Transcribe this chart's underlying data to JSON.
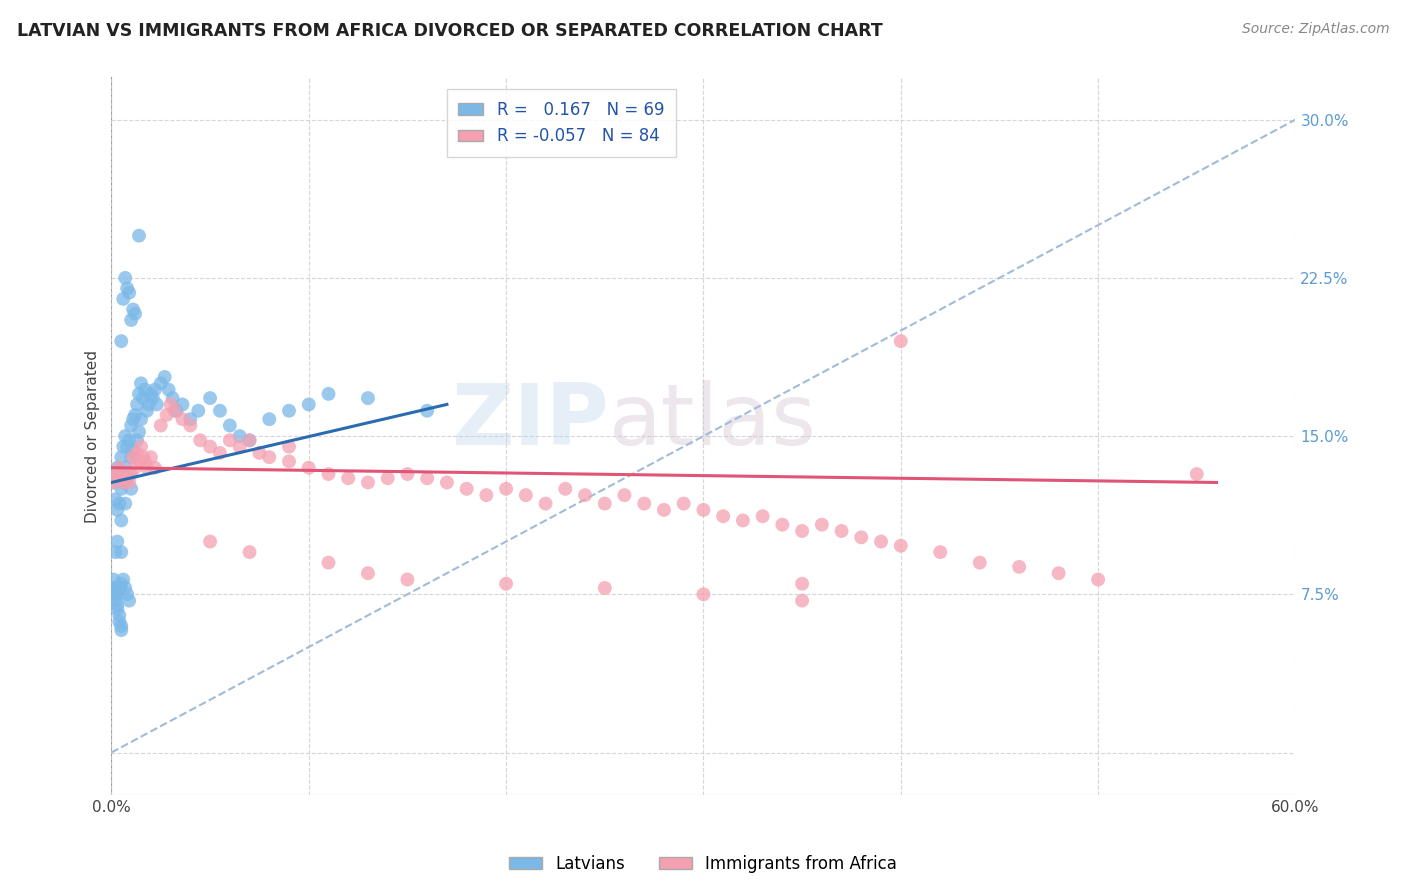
{
  "title": "LATVIAN VS IMMIGRANTS FROM AFRICA DIVORCED OR SEPARATED CORRELATION CHART",
  "source": "Source: ZipAtlas.com",
  "ylabel": "Divorced or Separated",
  "xlim": [
    0.0,
    0.6
  ],
  "ylim": [
    -0.02,
    0.32
  ],
  "yticks": [
    0.0,
    0.075,
    0.15,
    0.225,
    0.3
  ],
  "xticks": [
    0.0,
    0.1,
    0.2,
    0.3,
    0.4,
    0.5,
    0.6
  ],
  "xtick_labels": [
    "0.0%",
    "",
    "",
    "",
    "",
    "",
    "60.0%"
  ],
  "latvian_color": "#7ab8e8",
  "africa_color": "#f4a0b0",
  "latvian_line_color": "#2b6cb0",
  "africa_line_color": "#e05575",
  "diagonal_color": "#a0bcd8",
  "latvian_R": 0.167,
  "latvian_N": 69,
  "africa_R": -0.057,
  "africa_N": 84,
  "background_color": "#ffffff",
  "grid_color": "#cccccc",
  "legend_labels": [
    "Latvians",
    "Immigrants from Africa"
  ],
  "latvian_x": [
    0.001,
    0.002,
    0.002,
    0.003,
    0.003,
    0.003,
    0.004,
    0.004,
    0.005,
    0.005,
    0.005,
    0.005,
    0.006,
    0.006,
    0.007,
    0.007,
    0.007,
    0.008,
    0.008,
    0.009,
    0.009,
    0.01,
    0.01,
    0.01,
    0.011,
    0.011,
    0.012,
    0.013,
    0.013,
    0.014,
    0.014,
    0.015,
    0.015,
    0.016,
    0.017,
    0.018,
    0.019,
    0.02,
    0.021,
    0.022,
    0.023,
    0.025,
    0.027,
    0.029,
    0.031,
    0.033,
    0.036,
    0.04,
    0.044,
    0.05,
    0.055,
    0.06,
    0.065,
    0.07,
    0.08,
    0.09,
    0.1,
    0.11,
    0.13,
    0.16,
    0.001,
    0.002,
    0.003,
    0.004,
    0.005,
    0.006,
    0.007,
    0.008,
    0.009
  ],
  "latvian_y": [
    0.128,
    0.12,
    0.095,
    0.135,
    0.115,
    0.1,
    0.13,
    0.118,
    0.14,
    0.125,
    0.11,
    0.095,
    0.145,
    0.128,
    0.15,
    0.135,
    0.118,
    0.145,
    0.13,
    0.148,
    0.132,
    0.155,
    0.14,
    0.125,
    0.158,
    0.143,
    0.16,
    0.165,
    0.148,
    0.17,
    0.152,
    0.175,
    0.158,
    0.168,
    0.172,
    0.162,
    0.165,
    0.17,
    0.168,
    0.172,
    0.165,
    0.175,
    0.178,
    0.172,
    0.168,
    0.162,
    0.165,
    0.158,
    0.162,
    0.168,
    0.162,
    0.155,
    0.15,
    0.148,
    0.158,
    0.162,
    0.165,
    0.17,
    0.168,
    0.162,
    0.082,
    0.078,
    0.075,
    0.078,
    0.08,
    0.082,
    0.078,
    0.075,
    0.072
  ],
  "latvian_y_outliers": [
    0.245,
    0.195,
    0.215,
    0.225,
    0.22,
    0.218,
    0.205,
    0.21,
    0.208,
    0.078,
    0.075,
    0.072,
    0.07,
    0.068,
    0.065,
    0.062,
    0.06,
    0.058
  ],
  "latvian_x_outliers": [
    0.014,
    0.005,
    0.006,
    0.007,
    0.008,
    0.009,
    0.01,
    0.011,
    0.012,
    0.001,
    0.002,
    0.002,
    0.003,
    0.003,
    0.004,
    0.004,
    0.005,
    0.005
  ],
  "africa_x": [
    0.001,
    0.002,
    0.003,
    0.004,
    0.005,
    0.006,
    0.007,
    0.008,
    0.009,
    0.01,
    0.011,
    0.012,
    0.013,
    0.014,
    0.015,
    0.016,
    0.017,
    0.018,
    0.02,
    0.022,
    0.025,
    0.028,
    0.032,
    0.036,
    0.04,
    0.045,
    0.05,
    0.055,
    0.06,
    0.065,
    0.07,
    0.075,
    0.08,
    0.09,
    0.1,
    0.11,
    0.12,
    0.13,
    0.14,
    0.15,
    0.16,
    0.17,
    0.18,
    0.19,
    0.2,
    0.21,
    0.22,
    0.23,
    0.24,
    0.25,
    0.26,
    0.27,
    0.28,
    0.29,
    0.3,
    0.31,
    0.32,
    0.33,
    0.34,
    0.35,
    0.36,
    0.37,
    0.38,
    0.39,
    0.4,
    0.42,
    0.44,
    0.46,
    0.48,
    0.5,
    0.03,
    0.05,
    0.07,
    0.09,
    0.11,
    0.13,
    0.15,
    0.2,
    0.25,
    0.3,
    0.35,
    0.55,
    0.35,
    0.4
  ],
  "africa_y": [
    0.128,
    0.13,
    0.132,
    0.135,
    0.13,
    0.128,
    0.132,
    0.13,
    0.128,
    0.132,
    0.14,
    0.135,
    0.142,
    0.138,
    0.145,
    0.14,
    0.138,
    0.135,
    0.14,
    0.135,
    0.155,
    0.16,
    0.162,
    0.158,
    0.155,
    0.148,
    0.145,
    0.142,
    0.148,
    0.145,
    0.148,
    0.142,
    0.14,
    0.138,
    0.135,
    0.132,
    0.13,
    0.128,
    0.13,
    0.132,
    0.13,
    0.128,
    0.125,
    0.122,
    0.125,
    0.122,
    0.118,
    0.125,
    0.122,
    0.118,
    0.122,
    0.118,
    0.115,
    0.118,
    0.115,
    0.112,
    0.11,
    0.112,
    0.108,
    0.105,
    0.108,
    0.105,
    0.102,
    0.1,
    0.098,
    0.095,
    0.09,
    0.088,
    0.085,
    0.082,
    0.165,
    0.1,
    0.095,
    0.145,
    0.09,
    0.085,
    0.082,
    0.08,
    0.078,
    0.075,
    0.072,
    0.132,
    0.08,
    0.195
  ]
}
